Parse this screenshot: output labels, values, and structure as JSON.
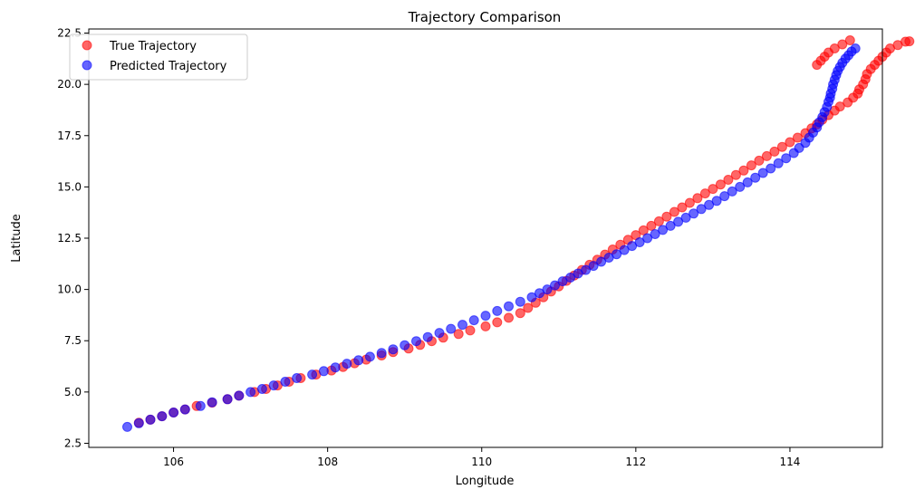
{
  "chart_data": {
    "type": "scatter",
    "title": "Trajectory Comparison",
    "xlabel": "Longitude",
    "ylabel": "Latitude",
    "xlim": [
      104.9,
      115.2
    ],
    "ylim": [
      2.3,
      22.7
    ],
    "xticks": [
      106,
      108,
      110,
      112,
      114
    ],
    "yticks": [
      2.5,
      5.0,
      7.5,
      10.0,
      12.5,
      15.0,
      17.5,
      20.0,
      22.5
    ],
    "grid": false,
    "legend_position": "upper left",
    "series": [
      {
        "name": "True Trajectory",
        "color": "#ff0000",
        "points": [
          [
            105.55,
            3.5
          ],
          [
            105.7,
            3.65
          ],
          [
            105.85,
            3.82
          ],
          [
            106.0,
            4.0
          ],
          [
            106.15,
            4.15
          ],
          [
            106.3,
            4.32
          ],
          [
            106.5,
            4.48
          ],
          [
            106.7,
            4.65
          ],
          [
            106.85,
            4.82
          ],
          [
            107.05,
            5.0
          ],
          [
            107.2,
            5.15
          ],
          [
            107.35,
            5.32
          ],
          [
            107.5,
            5.5
          ],
          [
            107.65,
            5.68
          ],
          [
            107.85,
            5.85
          ],
          [
            108.05,
            6.05
          ],
          [
            108.2,
            6.22
          ],
          [
            108.35,
            6.4
          ],
          [
            108.5,
            6.58
          ],
          [
            108.7,
            6.78
          ],
          [
            108.85,
            6.95
          ],
          [
            109.05,
            7.12
          ],
          [
            109.2,
            7.3
          ],
          [
            109.35,
            7.48
          ],
          [
            109.5,
            7.65
          ],
          [
            109.7,
            7.83
          ],
          [
            109.85,
            8.0
          ],
          [
            110.05,
            8.2
          ],
          [
            110.2,
            8.4
          ],
          [
            110.35,
            8.62
          ],
          [
            110.5,
            8.85
          ],
          [
            110.6,
            9.1
          ],
          [
            110.7,
            9.35
          ],
          [
            110.8,
            9.62
          ],
          [
            110.9,
            9.9
          ],
          [
            111.0,
            10.15
          ],
          [
            111.1,
            10.42
          ],
          [
            111.2,
            10.68
          ],
          [
            111.3,
            10.95
          ],
          [
            111.4,
            11.2
          ],
          [
            111.5,
            11.45
          ],
          [
            111.6,
            11.7
          ],
          [
            111.7,
            11.95
          ],
          [
            111.8,
            12.18
          ],
          [
            111.9,
            12.42
          ],
          [
            112.0,
            12.65
          ],
          [
            112.1,
            12.88
          ],
          [
            112.2,
            13.1
          ],
          [
            112.3,
            13.32
          ],
          [
            112.4,
            13.55
          ],
          [
            112.5,
            13.78
          ],
          [
            112.6,
            14.0
          ],
          [
            112.7,
            14.22
          ],
          [
            112.8,
            14.45
          ],
          [
            112.9,
            14.68
          ],
          [
            113.0,
            14.9
          ],
          [
            113.1,
            15.12
          ],
          [
            113.2,
            15.35
          ],
          [
            113.3,
            15.58
          ],
          [
            113.4,
            15.8
          ],
          [
            113.5,
            16.05
          ],
          [
            113.6,
            16.28
          ],
          [
            113.7,
            16.5
          ],
          [
            113.8,
            16.72
          ],
          [
            113.9,
            16.95
          ],
          [
            114.0,
            17.18
          ],
          [
            114.1,
            17.4
          ],
          [
            114.2,
            17.62
          ],
          [
            114.28,
            17.85
          ],
          [
            114.35,
            18.05
          ],
          [
            114.42,
            18.28
          ],
          [
            114.5,
            18.5
          ],
          [
            114.58,
            18.72
          ],
          [
            114.65,
            18.92
          ],
          [
            114.75,
            19.12
          ],
          [
            114.82,
            19.35
          ],
          [
            114.88,
            19.55
          ],
          [
            114.9,
            19.75
          ],
          [
            114.95,
            20.0
          ],
          [
            114.98,
            20.25
          ],
          [
            115.0,
            20.5
          ],
          [
            115.05,
            20.75
          ],
          [
            115.1,
            20.95
          ],
          [
            115.15,
            21.15
          ],
          [
            115.2,
            21.35
          ],
          [
            115.25,
            21.55
          ],
          [
            115.3,
            21.75
          ],
          [
            115.4,
            21.92
          ],
          [
            115.5,
            22.08
          ],
          [
            115.55,
            22.1
          ],
          [
            114.78,
            22.15
          ],
          [
            114.68,
            21.95
          ],
          [
            114.58,
            21.75
          ],
          [
            114.5,
            21.55
          ],
          [
            114.45,
            21.35
          ],
          [
            114.4,
            21.15
          ],
          [
            114.35,
            20.95
          ]
        ]
      },
      {
        "name": "Predicted Trajectory",
        "color": "#0000ff",
        "points": [
          [
            105.4,
            3.3
          ],
          [
            105.55,
            3.48
          ],
          [
            105.7,
            3.65
          ],
          [
            105.85,
            3.82
          ],
          [
            106.0,
            4.0
          ],
          [
            106.15,
            4.15
          ],
          [
            106.35,
            4.32
          ],
          [
            106.5,
            4.5
          ],
          [
            106.7,
            4.65
          ],
          [
            106.85,
            4.82
          ],
          [
            107.0,
            5.0
          ],
          [
            107.15,
            5.15
          ],
          [
            107.3,
            5.32
          ],
          [
            107.45,
            5.5
          ],
          [
            107.6,
            5.68
          ],
          [
            107.8,
            5.85
          ],
          [
            107.95,
            6.02
          ],
          [
            108.1,
            6.2
          ],
          [
            108.25,
            6.38
          ],
          [
            108.4,
            6.55
          ],
          [
            108.55,
            6.72
          ],
          [
            108.7,
            6.9
          ],
          [
            108.85,
            7.08
          ],
          [
            109.0,
            7.28
          ],
          [
            109.15,
            7.48
          ],
          [
            109.3,
            7.68
          ],
          [
            109.45,
            7.88
          ],
          [
            109.6,
            8.08
          ],
          [
            109.75,
            8.28
          ],
          [
            109.9,
            8.5
          ],
          [
            110.05,
            8.72
          ],
          [
            110.2,
            8.95
          ],
          [
            110.35,
            9.18
          ],
          [
            110.5,
            9.4
          ],
          [
            110.65,
            9.62
          ],
          [
            110.75,
            9.82
          ],
          [
            110.85,
            10.0
          ],
          [
            110.95,
            10.2
          ],
          [
            111.05,
            10.4
          ],
          [
            111.15,
            10.58
          ],
          [
            111.25,
            10.78
          ],
          [
            111.35,
            10.95
          ],
          [
            111.45,
            11.15
          ],
          [
            111.55,
            11.35
          ],
          [
            111.65,
            11.55
          ],
          [
            111.75,
            11.72
          ],
          [
            111.85,
            11.92
          ],
          [
            111.95,
            12.12
          ],
          [
            112.05,
            12.3
          ],
          [
            112.15,
            12.5
          ],
          [
            112.25,
            12.7
          ],
          [
            112.35,
            12.9
          ],
          [
            112.45,
            13.1
          ],
          [
            112.55,
            13.3
          ],
          [
            112.65,
            13.5
          ],
          [
            112.75,
            13.7
          ],
          [
            112.85,
            13.92
          ],
          [
            112.95,
            14.12
          ],
          [
            113.05,
            14.32
          ],
          [
            113.15,
            14.55
          ],
          [
            113.25,
            14.78
          ],
          [
            113.35,
            15.0
          ],
          [
            113.45,
            15.22
          ],
          [
            113.55,
            15.45
          ],
          [
            113.65,
            15.68
          ],
          [
            113.75,
            15.9
          ],
          [
            113.85,
            16.15
          ],
          [
            113.95,
            16.4
          ],
          [
            114.05,
            16.65
          ],
          [
            114.12,
            16.9
          ],
          [
            114.2,
            17.15
          ],
          [
            114.25,
            17.4
          ],
          [
            114.3,
            17.65
          ],
          [
            114.35,
            17.9
          ],
          [
            114.38,
            18.15
          ],
          [
            114.42,
            18.4
          ],
          [
            114.45,
            18.65
          ],
          [
            114.48,
            18.9
          ],
          [
            114.5,
            19.15
          ],
          [
            114.52,
            19.35
          ],
          [
            114.53,
            19.55
          ],
          [
            114.55,
            19.78
          ],
          [
            114.56,
            20.0
          ],
          [
            114.58,
            20.22
          ],
          [
            114.6,
            20.45
          ],
          [
            114.62,
            20.65
          ],
          [
            114.65,
            20.85
          ],
          [
            114.68,
            21.05
          ],
          [
            114.72,
            21.25
          ],
          [
            114.76,
            21.42
          ],
          [
            114.8,
            21.6
          ],
          [
            114.85,
            21.75
          ]
        ]
      }
    ]
  }
}
